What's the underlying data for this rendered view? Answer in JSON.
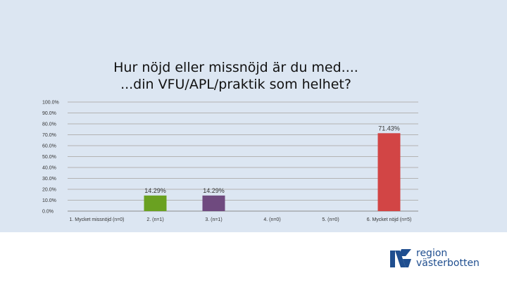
{
  "chart_data": {
    "type": "bar",
    "title_lines": [
      "Hur nöjd eller missnöjd är du med....",
      "...din VFU/APL/praktik som helhet?"
    ],
    "categories": [
      "1. Mycket missnöjd (n=0)",
      "2. (n=1)",
      "3. (n=1)",
      "4. (n=0)",
      "5. (n=0)",
      "6. Mycket nöjd (n=5)"
    ],
    "values": [
      0,
      14.29,
      14.29,
      0,
      0,
      71.43
    ],
    "data_labels": [
      "",
      "14.29%",
      "14.29%",
      "",
      "",
      "71.43%"
    ],
    "bar_colors": [
      "#4f81bd",
      "#6aa121",
      "#6f4a7f",
      "#4f81bd",
      "#4f81bd",
      "#d24545"
    ],
    "yticks": [
      "0.0%",
      "10.0%",
      "20.0%",
      "30.0%",
      "40.0%",
      "50.0%",
      "60.0%",
      "70.0%",
      "80.0%",
      "90.0%",
      "100.0%"
    ],
    "ylim": [
      0,
      100
    ],
    "grid": true,
    "legend": "none"
  },
  "logo": {
    "text_line1": "region",
    "text_line2": "västerbotten",
    "color": "#1f4e8f"
  },
  "colors": {
    "slide_background": "#dce6f2",
    "gridline": "#b3b3b3"
  }
}
